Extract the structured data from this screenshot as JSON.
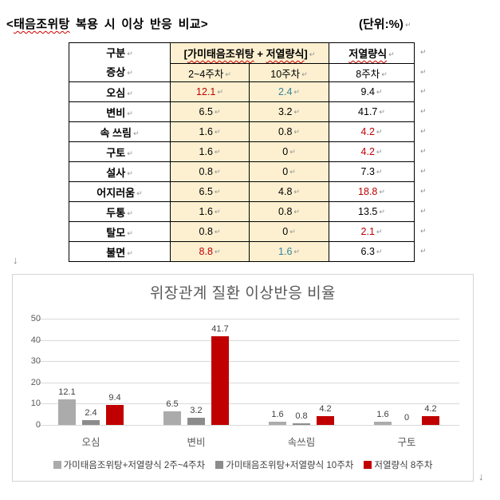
{
  "colors": {
    "table_red": "#C00000",
    "table_blue": "#31849B",
    "cell_cream": "#FCF0D0",
    "chart_text": "#595959",
    "spellcheck_red": "#D00000"
  },
  "marks": {
    "pilcrow": "↵",
    "down_arrow": "↓"
  },
  "doc_title": {
    "segments": [
      {
        "text": "<",
        "wavy": false
      },
      {
        "text": "태음조위탕",
        "wavy": true
      },
      {
        "text": " 복용 시 이상 반응 비교>",
        "wavy": false
      }
    ],
    "unit_label": "(단위:%)"
  },
  "table": {
    "corner_top": "구분",
    "corner_bottom": "증상",
    "combo_header_segments": [
      {
        "text": "[",
        "wavy": false
      },
      {
        "text": "가미태음조위탕",
        "wavy": true
      },
      {
        "text": " + ",
        "wavy": false
      },
      {
        "text": "저열량식",
        "wavy": true
      },
      {
        "text": "]",
        "wavy": false
      }
    ],
    "combo_subheaders": [
      "2~4주차",
      "10주차"
    ],
    "control_header": "저열량식",
    "control_subheader": "8주차",
    "rows": [
      {
        "symptom": "오심",
        "values": [
          {
            "text": "12.1",
            "color": "red"
          },
          {
            "text": "2.4",
            "color": "blue"
          },
          {
            "text": "9.4",
            "color": "default"
          }
        ]
      },
      {
        "symptom": "변비",
        "values": [
          {
            "text": "6.5",
            "color": "default"
          },
          {
            "text": "3.2",
            "color": "default"
          },
          {
            "text": "41.7",
            "color": "default"
          }
        ]
      },
      {
        "symptom": "속 쓰림",
        "values": [
          {
            "text": "1.6",
            "color": "default"
          },
          {
            "text": "0.8",
            "color": "default"
          },
          {
            "text": "4.2",
            "color": "red"
          }
        ]
      },
      {
        "symptom": "구토",
        "values": [
          {
            "text": "1.6",
            "color": "default"
          },
          {
            "text": "0",
            "color": "default"
          },
          {
            "text": "4.2",
            "color": "red"
          }
        ]
      },
      {
        "symptom": "설사",
        "values": [
          {
            "text": "0.8",
            "color": "default"
          },
          {
            "text": "0",
            "color": "default"
          },
          {
            "text": "7.3",
            "color": "default"
          }
        ]
      },
      {
        "symptom": "어지러움",
        "values": [
          {
            "text": "6.5",
            "color": "default"
          },
          {
            "text": "4.8",
            "color": "default"
          },
          {
            "text": "18.8",
            "color": "red"
          }
        ]
      },
      {
        "symptom": "두통",
        "values": [
          {
            "text": "1.6",
            "color": "default"
          },
          {
            "text": "0.8",
            "color": "default"
          },
          {
            "text": "13.5",
            "color": "default"
          }
        ]
      },
      {
        "symptom": "탈모",
        "values": [
          {
            "text": "0.8",
            "color": "default"
          },
          {
            "text": "0",
            "color": "default"
          },
          {
            "text": "2.1",
            "color": "red"
          }
        ]
      },
      {
        "symptom": "불면",
        "values": [
          {
            "text": "8.8",
            "color": "red"
          },
          {
            "text": "1.6",
            "color": "blue"
          },
          {
            "text": "6.3",
            "color": "default"
          }
        ]
      }
    ]
  },
  "chart_data": {
    "type": "bar",
    "title": "위장관계 질환 이상반응 비율",
    "categories": [
      "오심",
      "변비",
      "속쓰림",
      "구토"
    ],
    "series": [
      {
        "name": "가미태음조위탕+저열량식 2주~4주차",
        "color": "#ABABAB",
        "values": [
          12.1,
          6.5,
          1.6,
          1.6
        ]
      },
      {
        "name": "가미태음조위탕+저열량식 10주차",
        "color": "#8C8C8C",
        "values": [
          2.4,
          3.2,
          0.8,
          0
        ]
      },
      {
        "name": "저열량식 8주차",
        "color": "#C00000",
        "values": [
          9.4,
          41.7,
          4.2,
          4.2
        ]
      }
    ],
    "value_labels": [
      [
        "12.1",
        "6.5",
        "1.6",
        "1.6"
      ],
      [
        "2.4",
        "3.2",
        "0.8",
        "0"
      ],
      [
        "9.4",
        "41.7",
        "4.2",
        "4.2"
      ]
    ],
    "xlabel": "",
    "ylabel": "",
    "ylim": [
      0,
      50
    ],
    "yticks": [
      0,
      10,
      20,
      30,
      40,
      50
    ],
    "grid": true,
    "legend_position": "bottom"
  }
}
